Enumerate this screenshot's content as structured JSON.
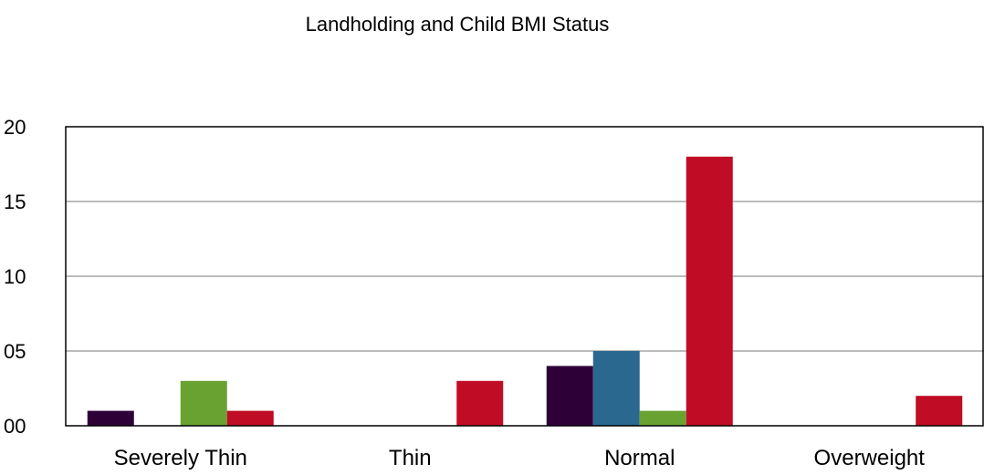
{
  "chart_data": {
    "type": "bar",
    "title": "Landholding and Child BMI Status",
    "xlabel": "",
    "ylabel": "",
    "categories": [
      "Severely Thin",
      "Thin",
      "Normal",
      "Overweight"
    ],
    "ylim": [
      0,
      20
    ],
    "ytick_labels": [
      "00",
      "05",
      "10",
      "15",
      "20"
    ],
    "grid": true,
    "legend": "none",
    "series": [
      {
        "color": "#2e0038",
        "values": [
          1,
          0,
          4,
          0
        ]
      },
      {
        "color": "#2a6890",
        "values": [
          0,
          0,
          5,
          0
        ]
      },
      {
        "color": "#6aa232",
        "values": [
          3,
          0,
          1,
          0
        ]
      },
      {
        "color": "#c00c24",
        "values": [
          1,
          3,
          18,
          2
        ]
      }
    ]
  }
}
